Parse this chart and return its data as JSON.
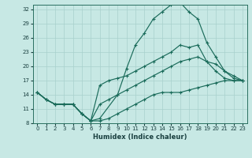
{
  "title": "",
  "xlabel": "Humidex (Indice chaleur)",
  "xlim": [
    -0.5,
    23.5
  ],
  "ylim": [
    8,
    33
  ],
  "yticks": [
    8,
    11,
    14,
    17,
    20,
    23,
    26,
    29,
    32
  ],
  "xticks": [
    0,
    1,
    2,
    3,
    4,
    5,
    6,
    7,
    8,
    9,
    10,
    11,
    12,
    13,
    14,
    15,
    16,
    17,
    18,
    19,
    20,
    21,
    22,
    23
  ],
  "background_color": "#c7e8e4",
  "grid_color": "#a8d0cc",
  "line_color": "#1a6b5a",
  "lines": [
    {
      "x": [
        0,
        1,
        2,
        3,
        4,
        5,
        6,
        7,
        9,
        10,
        11,
        12,
        13,
        14,
        15,
        16,
        17,
        18,
        19,
        20,
        21,
        22,
        23
      ],
      "y": [
        14.5,
        13,
        12,
        12,
        12,
        10,
        8.5,
        9,
        14,
        19.5,
        24.5,
        27,
        30,
        31.5,
        33,
        33.5,
        31.5,
        30,
        25,
        22,
        19,
        17.5,
        17
      ]
    },
    {
      "x": [
        0,
        1,
        2,
        3,
        4,
        5,
        6,
        7,
        8,
        9,
        10,
        11,
        12,
        13,
        14,
        15,
        16,
        17,
        18,
        19,
        20,
        21,
        22,
        23
      ],
      "y": [
        14.5,
        13,
        12,
        12,
        12,
        10,
        8.5,
        16,
        17,
        17.5,
        18,
        19,
        20,
        21,
        22,
        23,
        24.5,
        24,
        24.5,
        21,
        19,
        17.5,
        17,
        17
      ]
    },
    {
      "x": [
        0,
        1,
        2,
        3,
        4,
        5,
        6,
        7,
        8,
        9,
        10,
        11,
        12,
        13,
        14,
        15,
        16,
        17,
        18,
        19,
        20,
        21,
        22,
        23
      ],
      "y": [
        14.5,
        13,
        12,
        12,
        12,
        10,
        8.5,
        12,
        13,
        14,
        15,
        16,
        17,
        18,
        19,
        20,
        21,
        21.5,
        22,
        21,
        20.5,
        19,
        18,
        17
      ]
    },
    {
      "x": [
        0,
        1,
        2,
        3,
        4,
        5,
        6,
        7,
        8,
        9,
        10,
        11,
        12,
        13,
        14,
        15,
        16,
        17,
        18,
        19,
        20,
        21,
        22,
        23
      ],
      "y": [
        14.5,
        13,
        12,
        12,
        12,
        10,
        8.5,
        8.5,
        9,
        10,
        11,
        12,
        13,
        14,
        14.5,
        14.5,
        14.5,
        15,
        15.5,
        16,
        16.5,
        17,
        17,
        17
      ]
    }
  ]
}
